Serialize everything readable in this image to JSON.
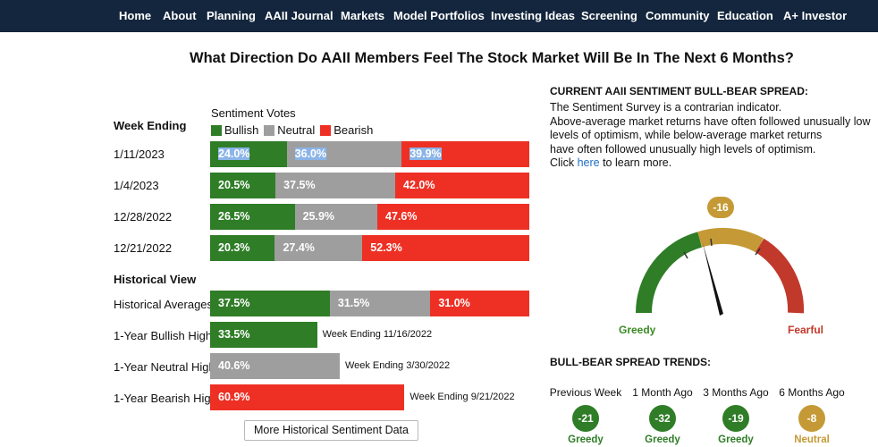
{
  "nav": {
    "items": [
      "Home",
      "About",
      "Planning",
      "AAII Journal",
      "Markets",
      "Model Portfolios",
      "Investing Ideas",
      "Screening",
      "Community",
      "Education",
      "A+ Investor"
    ]
  },
  "headline": "What Direction Do AAII Members Feel The Stock Market Will Be In The Next 6 Months?",
  "sentiment": {
    "week_ending_heading": "Week Ending",
    "votes_heading": "Sentiment Votes",
    "legend": {
      "bullish": "Bullish",
      "neutral": "Neutral",
      "bearish": "Bearish"
    },
    "colors": {
      "bullish": "#2f7d27",
      "neutral": "#9e9e9e",
      "bearish": "#ee3024",
      "selection": "#8bb4e8"
    },
    "weeks": [
      {
        "date": "1/11/2023",
        "bullish": "24.0%",
        "neutral": "36.0%",
        "bearish": "39.9%",
        "bullish_pct": 24.0,
        "neutral_pct": 36.0,
        "bearish_pct": 39.9
      },
      {
        "date": "1/4/2023",
        "bullish": "20.5%",
        "neutral": "37.5%",
        "bearish": "42.0%",
        "bullish_pct": 20.5,
        "neutral_pct": 37.5,
        "bearish_pct": 42.0
      },
      {
        "date": "12/28/2022",
        "bullish": "26.5%",
        "neutral": "25.9%",
        "bearish": "47.6%",
        "bullish_pct": 26.5,
        "neutral_pct": 25.9,
        "bearish_pct": 47.6
      },
      {
        "date": "12/21/2022",
        "bullish": "20.3%",
        "neutral": "27.4%",
        "bearish": "52.3%",
        "bullish_pct": 20.3,
        "neutral_pct": 27.4,
        "bearish_pct": 52.3
      }
    ]
  },
  "historical": {
    "heading": "Historical View",
    "averages": {
      "label": "Historical Averages",
      "bullish": "37.5%",
      "neutral": "31.5%",
      "bearish": "31.0%",
      "bullish_pct": 37.5,
      "neutral_pct": 31.5,
      "bearish_pct": 31.0
    },
    "bullish_high": {
      "label": "1-Year Bullish High:",
      "value": "33.5%",
      "pct": 33.5,
      "note": "Week Ending 11/16/2022"
    },
    "neutral_high": {
      "label": "1-Year Neutral High",
      "value": "40.6%",
      "pct": 40.6,
      "note": "Week Ending 3/30/2022"
    },
    "bearish_high": {
      "label": "1-Year Bearish High",
      "value": "60.9%",
      "pct": 60.9,
      "note": "Week Ending 9/21/2022"
    }
  },
  "more_button": "More Historical Sentiment Data",
  "spread": {
    "heading": "CURRENT AAII SENTIMENT BULL-BEAR SPREAD:",
    "desc_lines": [
      "The Sentiment Survey is a contrarian indicator.",
      "Above-average market returns have often followed unusually low",
      "levels of optimism, while below-average market returns",
      "have often followed unusually high levels of optimism."
    ],
    "click_prefix": "Click ",
    "click_link": "here",
    "click_suffix": " to learn more.",
    "gauge_value": "-16",
    "gauge_value_num": -16,
    "greedy_label": "Greedy",
    "fearful_label": "Fearful",
    "gauge_colors": {
      "greedy": "#2f7d27",
      "neutral": "#c59a36",
      "fearful": "#c0392b"
    }
  },
  "trends": {
    "heading": "BULL-BEAR SPREAD TRENDS:",
    "items": [
      {
        "period": "Previous Week",
        "value": "-21",
        "mood": "Greedy",
        "color": "#2f7d27"
      },
      {
        "period": "1 Month Ago",
        "value": "-32",
        "mood": "Greedy",
        "color": "#2f7d27"
      },
      {
        "period": "3 Months Ago",
        "value": "-19",
        "mood": "Greedy",
        "color": "#2f7d27"
      },
      {
        "period": "6 Months Ago",
        "value": "-8",
        "mood": "Neutral",
        "color": "#c59a36"
      }
    ]
  }
}
